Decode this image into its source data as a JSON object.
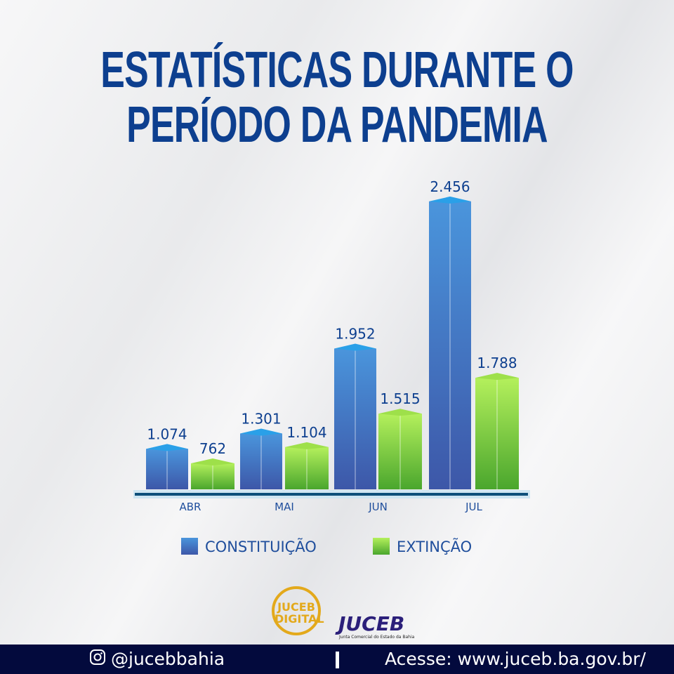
{
  "title_lines": [
    "ESTATÍSTICAS DURANTE O",
    "PERÍODO DA PANDEMIA"
  ],
  "chart_data": {
    "type": "bar",
    "categories": [
      "ABR",
      "MAI",
      "JUN",
      "JUL"
    ],
    "series": [
      {
        "name": "CONSTITUIÇÃO",
        "values": [
          1074,
          1301,
          1952,
          2456
        ],
        "labels": [
          "1.074",
          "1.301",
          "1.952",
          "2.456"
        ],
        "color": "#3f7fd0"
      },
      {
        "name": "EXTINÇÃO",
        "values": [
          762,
          1104,
          1515,
          1788
        ],
        "labels": [
          "762",
          "1.104",
          "1.515",
          "1.788"
        ],
        "color": "#7fd63a"
      }
    ],
    "grid": false,
    "legend": "bottom"
  },
  "logos": {
    "juceb_digital": "JUCEB DIGITAL",
    "juceb": "JUCEB",
    "juceb_sub": "Junta Comercial do Estado da Bahia"
  },
  "footer": {
    "handle": "@jucebbahia",
    "site": "Acesse: www.juceb.ba.gov.br/"
  }
}
